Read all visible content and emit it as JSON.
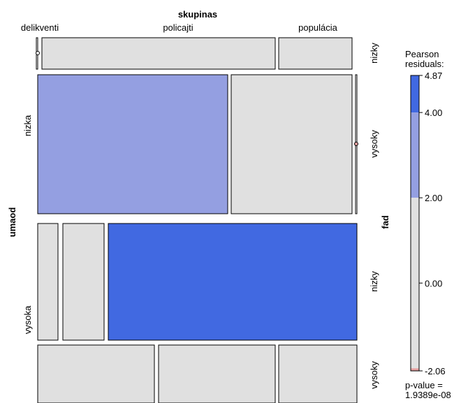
{
  "chart_data": {
    "type": "mosaic",
    "top_variable": "skupinas",
    "left_variable": "umaod",
    "right_variable": "fad",
    "top_levels": [
      "delikventi",
      "policajti",
      "populácia"
    ],
    "left_levels": [
      "nizka",
      "vysoka"
    ],
    "right_levels": [
      "nizky",
      "vysoky"
    ],
    "cells": [
      {
        "umaod": "nizka",
        "fad": "nizky",
        "skupinas": "delikventi",
        "residual_band": "0"
      },
      {
        "umaod": "nizka",
        "fad": "nizky",
        "skupinas": "policajti",
        "residual_band": "0"
      },
      {
        "umaod": "nizka",
        "fad": "nizky",
        "skupinas": "populácia",
        "residual_band": "0"
      },
      {
        "umaod": "nizka",
        "fad": "vysoky",
        "skupinas": "delikventi",
        "residual_band": "2-4"
      },
      {
        "umaod": "nizka",
        "fad": "vysoky",
        "skupinas": "policajti",
        "residual_band": "0"
      },
      {
        "umaod": "nizka",
        "fad": "vysoky",
        "skupinas": "populácia",
        "residual_band": "0"
      },
      {
        "umaod": "vysoka",
        "fad": "nizky",
        "skupinas": "delikventi",
        "residual_band": "0"
      },
      {
        "umaod": "vysoka",
        "fad": "nizky",
        "skupinas": "policajti",
        "residual_band": "0"
      },
      {
        "umaod": "vysoka",
        "fad": "nizky",
        "skupinas": "populácia",
        "residual_band": ">4"
      },
      {
        "umaod": "vysoka",
        "fad": "vysoky",
        "skupinas": "delikventi",
        "residual_band": "0"
      },
      {
        "umaod": "vysoka",
        "fad": "vysoky",
        "skupinas": "policajti",
        "residual_band": "0"
      },
      {
        "umaod": "vysoka",
        "fad": "vysoky",
        "skupinas": "populácia",
        "residual_band": "0"
      }
    ],
    "legend": {
      "title_lines": [
        "Pearson",
        "residuals:"
      ],
      "min": -2.06,
      "max": 4.87,
      "ticks": [
        {
          "value": 4.87,
          "label": "4.87"
        },
        {
          "value": 4.0,
          "label": "4.00"
        },
        {
          "value": 2.0,
          "label": "2.00"
        },
        {
          "value": 0.0,
          "label": "0.00"
        },
        {
          "value": -2.06,
          "label": "-2.06"
        }
      ],
      "bands": [
        {
          "from": 4.0,
          "to": 4.87,
          "color": "#4169E1"
        },
        {
          "from": 2.0,
          "to": 4.0,
          "color": "#949FE1"
        },
        {
          "from": -2.0,
          "to": 2.0,
          "color": "#E0E0E0"
        },
        {
          "from": -2.06,
          "to": -2.0,
          "color": "#E5A0A0"
        }
      ],
      "pvalue_lines": [
        "p-value =",
        "1.9389e-08"
      ]
    },
    "colors": {
      "neutral": "#E0E0E0",
      "positive_moderate": "#949FE1",
      "positive_strong": "#4169E1",
      "negative_moderate": "#E5A0A0",
      "border": "#000000"
    }
  }
}
